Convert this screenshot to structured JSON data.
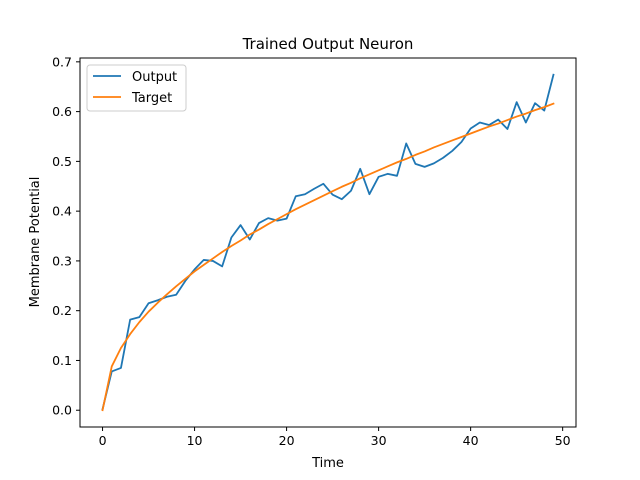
{
  "chart_data": {
    "type": "line",
    "title": "Trained Output Neuron",
    "xlabel": "Time",
    "ylabel": "Membrane Potential",
    "xlim": [
      -2.45,
      51.45
    ],
    "ylim": [
      -0.0337,
      0.7077
    ],
    "xticks": [
      0,
      10,
      20,
      30,
      40,
      50
    ],
    "yticks": [
      0.0,
      0.1,
      0.2,
      0.3,
      0.4,
      0.5,
      0.6,
      0.7
    ],
    "ytick_labels": [
      "0.0",
      "0.1",
      "0.2",
      "0.3",
      "0.4",
      "0.5",
      "0.6",
      "0.7"
    ],
    "grid": false,
    "legend": "top-left",
    "x": [
      0,
      1,
      2,
      3,
      4,
      5,
      6,
      7,
      8,
      9,
      10,
      11,
      12,
      13,
      14,
      15,
      16,
      17,
      18,
      19,
      20,
      21,
      22,
      23,
      24,
      25,
      26,
      27,
      28,
      29,
      30,
      31,
      32,
      33,
      34,
      35,
      36,
      37,
      38,
      39,
      40,
      41,
      42,
      43,
      44,
      45,
      46,
      47,
      48,
      49
    ],
    "series": [
      {
        "name": "Output",
        "color": "#1f77b4",
        "values": [
          0.002,
          0.078,
          0.085,
          0.182,
          0.187,
          0.215,
          0.221,
          0.228,
          0.232,
          0.26,
          0.283,
          0.302,
          0.3,
          0.289,
          0.347,
          0.372,
          0.343,
          0.376,
          0.386,
          0.381,
          0.385,
          0.43,
          0.434,
          0.445,
          0.455,
          0.433,
          0.424,
          0.441,
          0.485,
          0.434,
          0.469,
          0.475,
          0.471,
          0.536,
          0.495,
          0.489,
          0.496,
          0.507,
          0.521,
          0.539,
          0.566,
          0.578,
          0.573,
          0.584,
          0.565,
          0.619,
          0.578,
          0.617,
          0.602,
          0.674
        ]
      },
      {
        "name": "Target",
        "color": "#ff7f0e",
        "values": [
          0.0,
          0.088,
          0.125,
          0.153,
          0.177,
          0.198,
          0.216,
          0.233,
          0.249,
          0.264,
          0.279,
          0.292,
          0.305,
          0.318,
          0.33,
          0.341,
          0.353,
          0.363,
          0.374,
          0.384,
          0.394,
          0.404,
          0.413,
          0.422,
          0.431,
          0.44,
          0.449,
          0.457,
          0.466,
          0.474,
          0.482,
          0.49,
          0.498,
          0.505,
          0.513,
          0.52,
          0.528,
          0.535,
          0.542,
          0.549,
          0.556,
          0.563,
          0.57,
          0.576,
          0.583,
          0.59,
          0.596,
          0.603,
          0.609,
          0.616
        ]
      }
    ]
  }
}
